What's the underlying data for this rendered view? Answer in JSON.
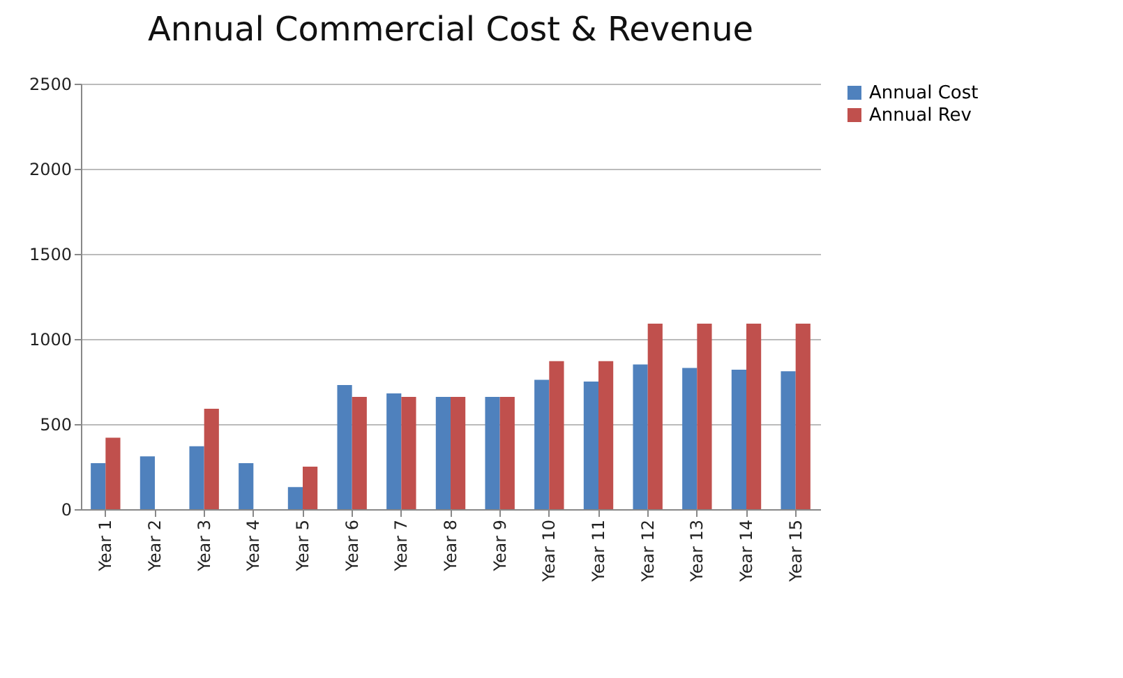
{
  "chart_data": {
    "type": "bar",
    "title": "Annual Commercial Cost & Revenue",
    "categories": [
      "Year 1",
      "Year 2",
      "Year 3",
      "Year 4",
      "Year 5",
      "Year 6",
      "Year 7",
      "Year 8",
      "Year 9",
      "Year 10",
      "Year 11",
      "Year 12",
      "Year 13",
      "Year 14",
      "Year 15"
    ],
    "series": [
      {
        "name": "Annual Cost",
        "color": "#4f81bd",
        "values": [
          270,
          310,
          370,
          270,
          130,
          730,
          680,
          660,
          660,
          760,
          750,
          850,
          830,
          820,
          810
        ]
      },
      {
        "name": "Annual Rev",
        "color": "#c0504d",
        "values": [
          420,
          null,
          590,
          null,
          250,
          660,
          660,
          660,
          660,
          870,
          870,
          1090,
          1090,
          1090,
          1090
        ]
      }
    ],
    "ylim": [
      0,
      2500
    ],
    "yticks": [
      0,
      500,
      1000,
      1500,
      2000,
      2500
    ],
    "grid": "y",
    "legend": "right"
  }
}
